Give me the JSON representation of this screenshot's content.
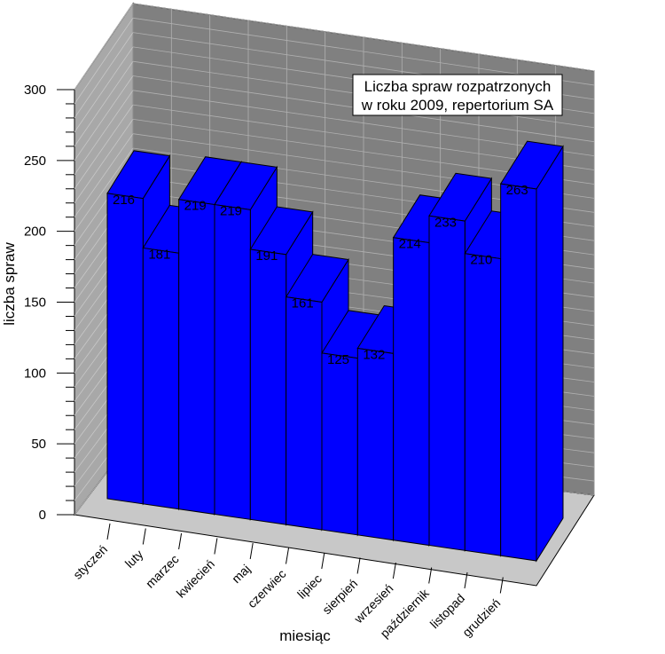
{
  "chart_data": {
    "type": "bar",
    "title_lines": [
      "Liczba spraw rozpatrzonych",
      "w roku 2009, repertorium SA"
    ],
    "xlabel": "miesiąc",
    "ylabel": "liczba spraw",
    "ylim": [
      0,
      300
    ],
    "yticks": [
      0,
      50,
      100,
      150,
      200,
      250,
      300
    ],
    "categories": [
      "styczeń",
      "luty",
      "marzec",
      "kwiecień",
      "maj",
      "czerwiec",
      "lipiec",
      "sierpień",
      "wrzesień",
      "październik",
      "listopad",
      "grudzień"
    ],
    "values": [
      216,
      181,
      219,
      219,
      191,
      161,
      125,
      132,
      214,
      233,
      210,
      263
    ],
    "bar_color": "#0000ff",
    "wall_color": "#808080",
    "floor_color": "#c8c8c8",
    "grid": true
  }
}
